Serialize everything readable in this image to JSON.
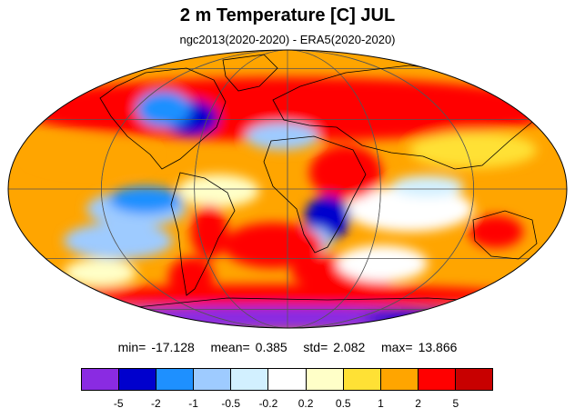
{
  "figure": {
    "title": "2 m Temperature [C] JUL",
    "subtitle": "ngc2013(2020-2020) - ERA5(2020-2020)"
  },
  "stats": {
    "min_label": "min=",
    "min_value": "-17.128",
    "mean_label": "mean=",
    "mean_value": "0.385",
    "std_label": "std=",
    "std_value": "2.082",
    "max_label": "max=",
    "max_value": "13.866"
  },
  "colorbar": {
    "colors": [
      "#8a2be2",
      "#0000cd",
      "#1e90ff",
      "#9ecbff",
      "#d2f0ff",
      "#ffffff",
      "#ffffc8",
      "#ffe135",
      "#ffa500",
      "#ff0000",
      "#c80000"
    ],
    "labels": [
      "-5",
      "-2",
      "-1",
      "-0.5",
      "-0.2",
      "0.2",
      "0.5",
      "1",
      "2",
      "5"
    ]
  },
  "map": {
    "projection": "mollweide",
    "background_color": "#ffa500",
    "graticule": true
  }
}
